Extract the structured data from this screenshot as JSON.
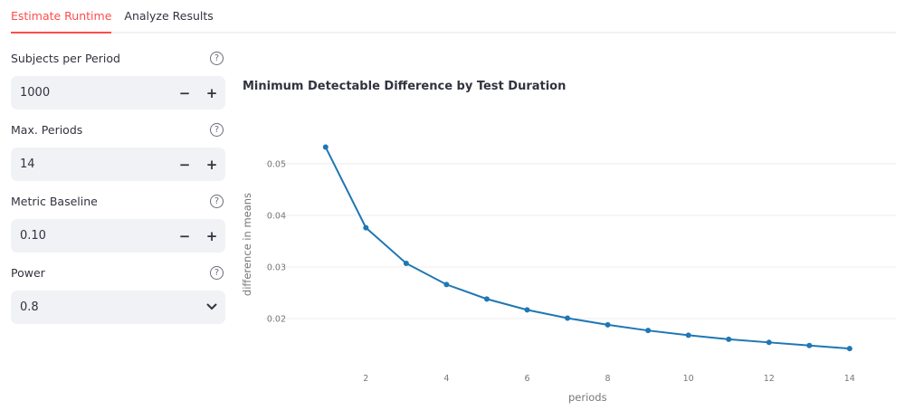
{
  "tabs": [
    "Estimate Runtime",
    "Analyze Results"
  ],
  "fields": [
    {
      "label": "Subjects per Period",
      "value": "1000",
      "type": "number"
    },
    {
      "label": "Max. Periods",
      "value": "14",
      "type": "number"
    },
    {
      "label": "Metric Baseline",
      "value": "0.10",
      "type": "number"
    },
    {
      "label": "Power",
      "value": "0.8",
      "type": "select"
    }
  ],
  "controls": {
    "minus": "−",
    "plus": "+",
    "help": "?",
    "chevron": "⌄"
  },
  "chart_data": {
    "type": "line",
    "title": "Minimum Detectable Difference by Test Duration",
    "xlabel": "periods",
    "ylabel": "difference in means",
    "x": [
      1,
      2,
      3,
      4,
      5,
      6,
      7,
      8,
      9,
      10,
      11,
      12,
      13,
      14
    ],
    "y": [
      0.0532,
      0.0376,
      0.0307,
      0.0266,
      0.0238,
      0.0217,
      0.0201,
      0.0188,
      0.0177,
      0.0168,
      0.016,
      0.0154,
      0.0148,
      0.0142
    ],
    "xticks": [
      2,
      4,
      6,
      8,
      10,
      12,
      14
    ],
    "yticks": [
      0.02,
      0.03,
      0.04,
      0.05
    ],
    "ytick_labels": [
      "0.02",
      "0.03",
      "0.04",
      "0.05"
    ],
    "xlim": [
      0.3,
      14.7
    ],
    "ylim": [
      0.0116,
      0.0554
    ],
    "grid": true,
    "color": "#1f77b4"
  }
}
